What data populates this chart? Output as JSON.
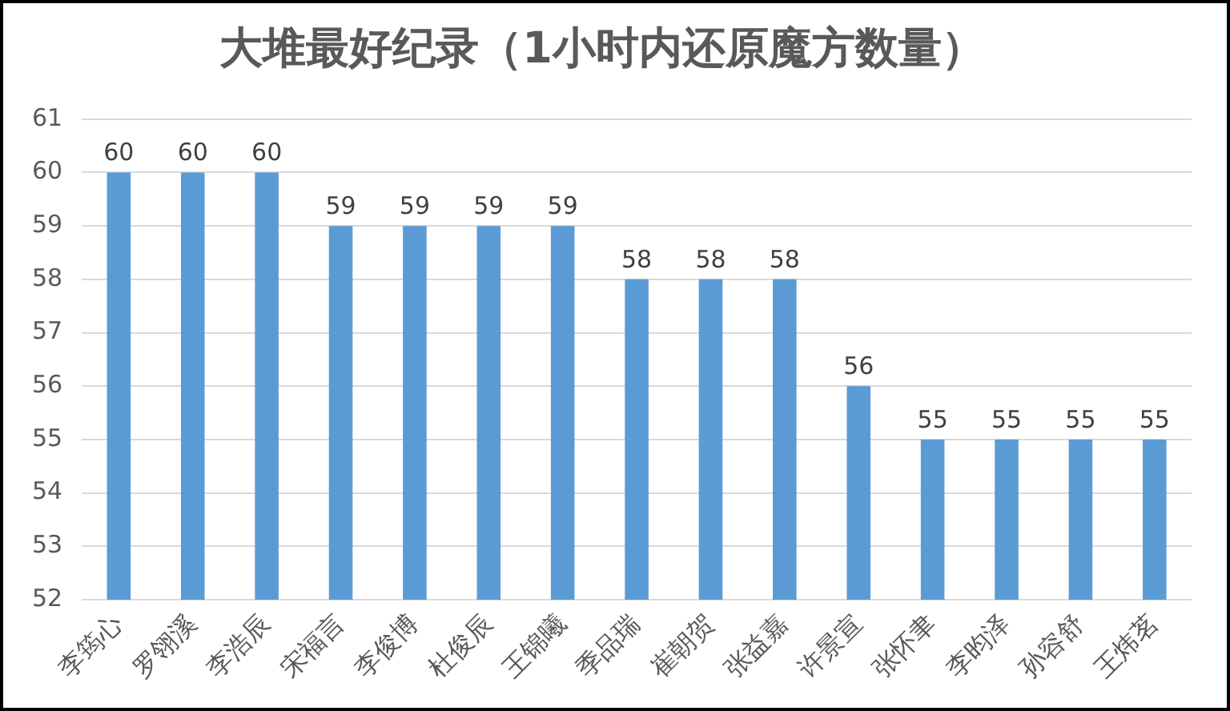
{
  "chart_data": {
    "type": "bar",
    "title": "大堆最好纪录（1小时内还原魔方数量）",
    "categories": [
      "李筠心",
      "罗翎溪",
      "李浩辰",
      "宋福言",
      "李俊博",
      "杜俊辰",
      "王锦曦",
      "季品瑞",
      "崔朝贺",
      "张益嘉",
      "许景宣",
      "张怀聿",
      "李昀泽",
      "孙容舒",
      "王炜茗"
    ],
    "values": [
      60,
      60,
      60,
      59,
      59,
      59,
      59,
      58,
      58,
      58,
      56,
      55,
      55,
      55,
      55
    ],
    "color": "#5b9bd5",
    "ylim": [
      52,
      61
    ],
    "yticks": [
      52,
      53,
      54,
      55,
      56,
      57,
      58,
      59,
      60,
      61
    ],
    "grid": "y",
    "data_labels": true
  }
}
